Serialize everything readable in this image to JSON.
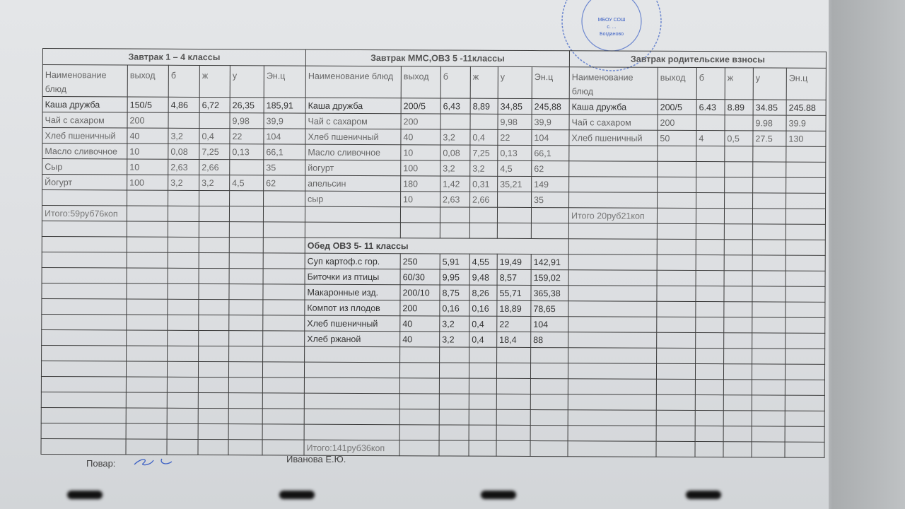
{
  "headers": [
    "Наименование блюд",
    "выход",
    "б",
    "ж",
    "у",
    "Эн.ц"
  ],
  "breakfast_1_4": {
    "title": "Завтрак 1 – 4 классы",
    "rows": [
      [
        "Каша дружба",
        "150/5",
        "4,86",
        "6,72",
        "26,35",
        "185,91"
      ],
      [
        "Чай с сахаром",
        "200",
        "",
        "",
        "9,98",
        "39,9"
      ],
      [
        "Хлеб пшеничный",
        "40",
        "3,2",
        "0,4",
        "22",
        "104"
      ],
      [
        "Масло сливочное",
        "10",
        "0,08",
        "7,25",
        "0,13",
        "66,1"
      ],
      [
        "Сыр",
        "10",
        "2,63",
        "2,66",
        "",
        "35"
      ],
      [
        "Йогурт",
        "100",
        "3,2",
        "3,2",
        "4,5",
        "62"
      ]
    ],
    "total": "Итого:59руб76коп"
  },
  "breakfast_mms": {
    "title": "Завтрак ММС,ОВЗ 5 -11классы",
    "rows": [
      [
        "Каша дружба",
        "200/5",
        "6,43",
        "8,89",
        "34,85",
        "245,88"
      ],
      [
        "Чай с сахаром",
        "200",
        "",
        "",
        "9,98",
        "39,9"
      ],
      [
        "Хлеб пшеничный",
        "40",
        "3,2",
        "0,4",
        "22",
        "104"
      ],
      [
        "Масло сливочное",
        "10",
        "0,08",
        "7,25",
        "0,13",
        "66,1"
      ],
      [
        "йогурт",
        "100",
        "3,2",
        "3,2",
        "4,5",
        "62"
      ],
      [
        "апельсин",
        "180",
        "1,42",
        "0,31",
        "35,21",
        "149"
      ],
      [
        "сыр",
        "10",
        "2,63",
        "2,66",
        "",
        "35"
      ]
    ]
  },
  "breakfast_parents": {
    "title": "Завтрак родительские взносы",
    "rows": [
      [
        "Каша дружба",
        "200/5",
        "6.43",
        "8.89",
        "34.85",
        "245.88"
      ],
      [
        "Чай с сахаром",
        "200",
        "",
        "",
        "9.98",
        "39.9"
      ],
      [
        "Хлеб пшеничный",
        "50",
        "4",
        "0,5",
        "27.5",
        "130"
      ]
    ],
    "total": "Итого 20руб21коп"
  },
  "lunch_ovz": {
    "title": "Обед ОВЗ 5- 11 классы",
    "rows": [
      [
        "Суп картоф.с гор.",
        "250",
        "5,91",
        "4,55",
        "19,49",
        "142,91"
      ],
      [
        "Биточки из птицы",
        "60/30",
        "9,95",
        "9,48",
        "8,57",
        "159,02"
      ],
      [
        "Макаронные изд.",
        "200/10",
        "8,75",
        "8,26",
        "55,71",
        "365,38"
      ],
      [
        "Компот из плодов",
        "200",
        "0,16",
        "0,16",
        "18,89",
        "78,65"
      ],
      [
        "Хлеб пшеничный",
        "40",
        "3,2",
        "0,4",
        "22",
        "104"
      ],
      [
        "Хлеб ржаной",
        "40",
        "3,2",
        "0,4",
        "18,4",
        "88"
      ]
    ],
    "total": "Итого:141руб36коп"
  },
  "footer": {
    "cook_label": "Повар:",
    "cook_name": "Иванова Е.Ю."
  },
  "stamp": {
    "lines": [
      "МБОУ СОШ",
      "с. ...",
      "Богданово"
    ],
    "color": "#3a5fc4"
  },
  "colors": {
    "ink": "#3a5fc4"
  }
}
